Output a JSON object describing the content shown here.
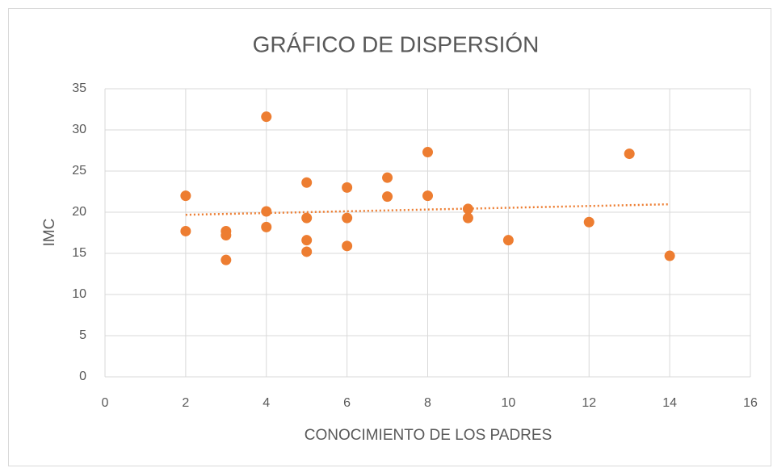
{
  "chart_data": {
    "type": "scatter",
    "title": "GRÁFICO DE DISPERSIÓN",
    "x_label": "CONOCIMIENTO DE LOS PADRES",
    "y_label": "IMC",
    "series": [
      {
        "color": "#ed7d31",
        "x": [
          2,
          2,
          3,
          3,
          3,
          4,
          4,
          4,
          5,
          5,
          5,
          5,
          6,
          6,
          6,
          7,
          7,
          8,
          8,
          9,
          9,
          10,
          12,
          13,
          14
        ],
        "values": [
          22.0,
          17.7,
          17.7,
          17.2,
          14.2,
          31.6,
          20.1,
          18.2,
          23.6,
          19.3,
          16.6,
          15.2,
          23.0,
          19.3,
          15.9,
          24.2,
          21.9,
          27.3,
          22.0,
          20.4,
          19.3,
          16.6,
          18.8,
          27.1,
          14.7
        ]
      }
    ],
    "trendline": "linear",
    "xlim": [
      0,
      16
    ],
    "xticks": [
      0,
      2,
      4,
      6,
      8,
      10,
      12,
      14,
      16
    ],
    "ylim": [
      0,
      35
    ],
    "yticks": [
      0,
      5,
      10,
      15,
      20,
      25,
      30,
      35
    ],
    "grid": true
  }
}
